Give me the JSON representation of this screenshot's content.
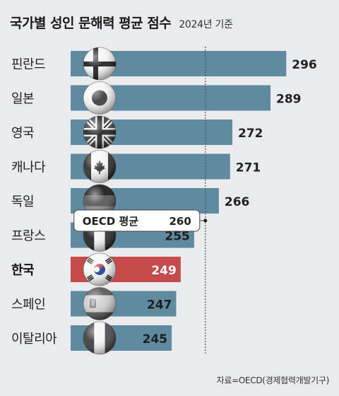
{
  "title": "국가별 성인 문해력 평균 점수",
  "subtitle": "2024년 기준",
  "source": "자료=OECD(경제협력개발기구)",
  "colors": {
    "bar": "#5f8aa0",
    "highlight_bar": "#c44a4c",
    "background": "#e9ebee",
    "reference_line": "#555555"
  },
  "chart_data": {
    "type": "bar",
    "orientation": "horizontal",
    "categories": [
      "핀란드",
      "일본",
      "영국",
      "캐나다",
      "독일",
      "프랑스",
      "한국",
      "스페인",
      "이탈리아"
    ],
    "values": [
      296,
      289,
      272,
      271,
      266,
      255,
      249,
      247,
      245
    ],
    "highlight": "한국",
    "flag_icons": [
      "finland-flag-icon",
      "japan-flag-icon",
      "uk-flag-icon",
      "canada-flag-icon",
      "germany-flag-icon",
      "france-flag-icon",
      "korea-flag-icon",
      "spain-flag-icon",
      "italy-flag-icon"
    ],
    "reference": {
      "label": "OECD 평균",
      "value": 260,
      "value_label": "260"
    },
    "xlim": [
      200,
      300
    ],
    "grid": false,
    "legend": "none"
  }
}
